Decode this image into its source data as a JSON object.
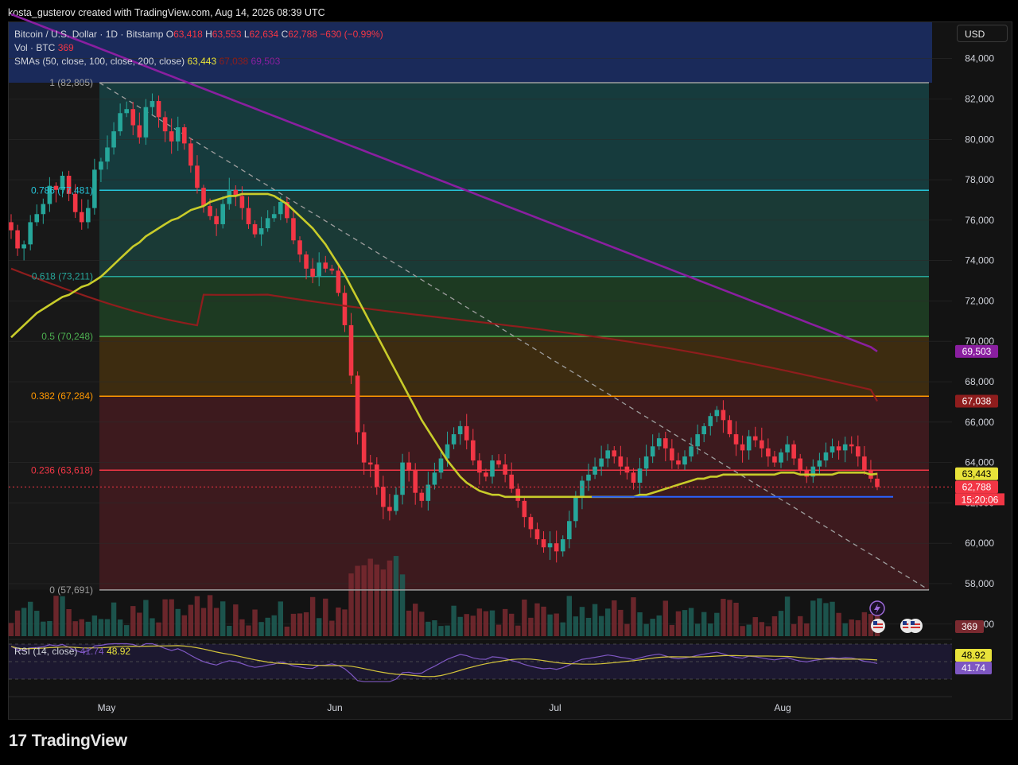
{
  "header": {
    "created_by": "kosta_gusterov created with TradingView.com, Aug 14, 2026 08:39 UTC"
  },
  "legend": {
    "symbol": "Bitcoin / U.S. Dollar · 1D · Bitstamp",
    "open_label": "O",
    "open": "63,418",
    "high_label": "H",
    "high": "63,553",
    "low_label": "L",
    "low": "62,634",
    "close_label": "C",
    "close": "62,788",
    "change": "−630 (−0.99%)",
    "vol_label": "Vol · BTC",
    "vol_value": "369",
    "sma_label": "SMAs (50, close, 100, close, 200, close)",
    "sma50": "63,443",
    "sma100": "67,038",
    "sma200": "69,503",
    "rsi_label": "RSI (14, close)",
    "rsi_value": "41.74",
    "rsi_ma": "48.92"
  },
  "currency_button": "USD",
  "brand": {
    "logo": "17",
    "name": "TradingView"
  },
  "colors": {
    "up": "#26a69a",
    "down": "#f23645",
    "sma50": "#c8cc2a",
    "sma100": "#8f1d1d",
    "sma200": "#8a1fa0",
    "rsi": "#7e57c2",
    "rsi_ma": "#d4c43a",
    "support_line": "#2962ff"
  },
  "chart_data": {
    "type": "candlestick",
    "x_ticks": [
      "May",
      "Jun",
      "Jul",
      "Aug"
    ],
    "y_ticks": [
      "56,000",
      "58,000",
      "60,000",
      "62,000",
      "64,000",
      "66,000",
      "68,000",
      "70,000",
      "72,000",
      "74,000",
      "76,000",
      "78,000",
      "80,000",
      "82,000",
      "84,000"
    ],
    "ylim": [
      55400,
      85800
    ],
    "fib_levels": [
      {
        "label": "1 (82,805)",
        "value": 82805,
        "color": "#9e9e9e",
        "fill": "#2a2a2a"
      },
      {
        "label": "0.786 (77,481)",
        "value": 77481,
        "color": "#26c6da",
        "fill": "#163b3d"
      },
      {
        "label": "0.618 (73,211)",
        "value": 73211,
        "color": "#26a69a",
        "fill": "#1a3a36"
      },
      {
        "label": "0.5 (70,248)",
        "value": 70248,
        "color": "#4caf50",
        "fill": "#1d3a22"
      },
      {
        "label": "0.382 (67,284)",
        "value": 67284,
        "color": "#ff9800",
        "fill": "#3d2c10"
      },
      {
        "label": "0.236 (63,618)",
        "value": 63618,
        "color": "#f23645",
        "fill": "#3d1a1e"
      },
      {
        "label": "0 (57,691)",
        "value": 57691,
        "color": "#9e9e9e",
        "fill": "#3d1a1e"
      }
    ],
    "price_tags": [
      {
        "value": "69,503",
        "color": "#8a1fa0"
      },
      {
        "value": "67,038",
        "color": "#8f1d1d"
      },
      {
        "value": "63,443",
        "color": "#e8e23a"
      },
      {
        "value": "62,788",
        "color": "#f23645"
      }
    ],
    "countdown": "15:20:06",
    "volume_tag": "369",
    "rsi_tags": [
      "48.92",
      "41.74"
    ],
    "support_level": 62300,
    "closes": [
      75500,
      74600,
      74800,
      75900,
      76300,
      76800,
      77700,
      77500,
      78200,
      77300,
      76400,
      75900,
      76600,
      78500,
      78900,
      79600,
      80400,
      81300,
      81500,
      80700,
      80100,
      81600,
      81900,
      81100,
      80400,
      79900,
      80600,
      79800,
      78700,
      77600,
      76700,
      76200,
      75800,
      76800,
      77500,
      77200,
      76600,
      75800,
      75300,
      75600,
      76100,
      76300,
      76900,
      76100,
      75000,
      74300,
      73600,
      73200,
      73900,
      73600,
      73500,
      72400,
      70800,
      68300,
      65500,
      64000,
      63900,
      62800,
      61800,
      61600,
      62400,
      64000,
      63600,
      62500,
      62100,
      62900,
      63500,
      64200,
      64900,
      65400,
      65800,
      65100,
      64100,
      63500,
      63300,
      64100,
      63900,
      63400,
      62700,
      62100,
      61300,
      60700,
      60200,
      59800,
      60000,
      59600,
      60200,
      61100,
      62300,
      63100,
      63400,
      63800,
      64200,
      64600,
      64300,
      63800,
      63500,
      63000,
      63700,
      64300,
      64800,
      65200,
      64700,
      64100,
      63900,
      64300,
      64800,
      65400,
      65800,
      66300,
      66600,
      66100,
      65400,
      64900,
      64600,
      65300,
      65100,
      64700,
      64300,
      64000,
      64500,
      64900,
      64200,
      63600,
      63300,
      63800,
      64100,
      64500,
      64800,
      64600,
      64900,
      64800,
      64300,
      63600,
      63200,
      62788
    ],
    "sma50": [
      70200,
      70500,
      70800,
      71100,
      71400,
      71600,
      71800,
      72000,
      72200,
      72300,
      72500,
      72700,
      72800,
      73000,
      73200,
      73500,
      73800,
      74100,
      74400,
      74700,
      74900,
      75200,
      75400,
      75600,
      75800,
      76000,
      76100,
      76300,
      76500,
      76600,
      76700,
      76900,
      77000,
      77100,
      77200,
      77200,
      77300,
      77300,
      77300,
      77300,
      77300,
      77200,
      77000,
      76800,
      76500,
      76200,
      75900,
      75600,
      75200,
      74800,
      74300,
      73800,
      73300,
      72700,
      72100,
      71500,
      70900,
      70300,
      69700,
      69100,
      68500,
      67900,
      67300,
      66700,
      66100,
      65600,
      65100,
      64600,
      64100,
      63700,
      63300,
      63000,
      62800,
      62600,
      62500,
      62400,
      62400,
      62300,
      62300,
      62300,
      62300,
      62300,
      62300,
      62300,
      62300,
      62300,
      62300,
      62300,
      62300,
      62300,
      62300,
      62300,
      62300,
      62300,
      62300,
      62300,
      62300,
      62300,
      62400,
      62400,
      62500,
      62600,
      62700,
      62800,
      62900,
      63000,
      63100,
      63200,
      63200,
      63300,
      63300,
      63400,
      63400,
      63400,
      63400,
      63400,
      63400,
      63400,
      63400,
      63400,
      63500,
      63500,
      63500,
      63400,
      63400,
      63400,
      63400,
      63400,
      63400,
      63500,
      63500,
      63500,
      63500,
      63500,
      63400,
      63443
    ],
    "series_note": "values read off price axis"
  }
}
